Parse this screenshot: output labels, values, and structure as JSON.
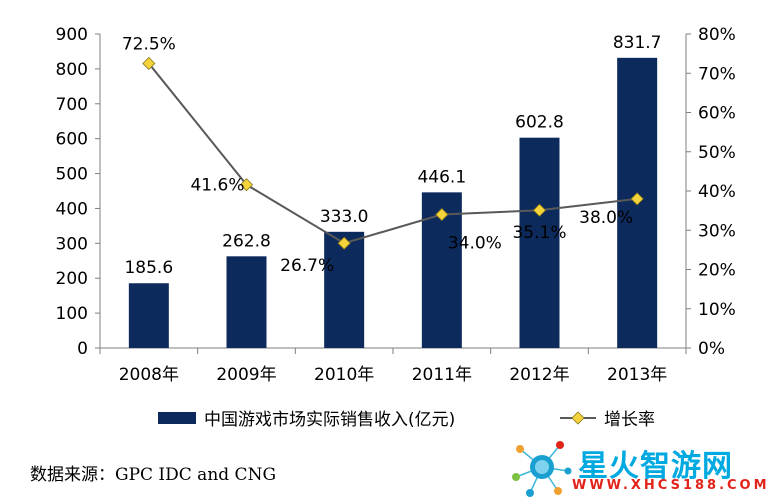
{
  "chart_data": {
    "type": "bar+line",
    "categories": [
      "2008年",
      "2009年",
      "2010年",
      "2011年",
      "2012年",
      "2013年"
    ],
    "series": [
      {
        "name": "中国游戏市场实际销售收入(亿元)",
        "type": "bar",
        "axis": "left",
        "values": [
          185.6,
          262.8,
          333.0,
          446.1,
          602.8,
          831.7
        ],
        "labels": [
          "185.6",
          "262.8",
          "333.0",
          "446.1",
          "602.8",
          "831.7"
        ],
        "color": "#0d2a5c"
      },
      {
        "name": "增长率",
        "type": "line",
        "axis": "right",
        "values": [
          72.5,
          41.6,
          26.7,
          34.0,
          35.1,
          38.0
        ],
        "labels": [
          "72.5%",
          "41.6%",
          "26.7%",
          "34.0%",
          "35.1%",
          "38.0%"
        ],
        "line_color": "#595959",
        "marker_color": "#f5d33a",
        "marker": "diamond"
      }
    ],
    "y_left": {
      "min": 0,
      "max": 900,
      "step": 100,
      "ticks": [
        "0",
        "100",
        "200",
        "300",
        "400",
        "500",
        "600",
        "700",
        "800",
        "900"
      ]
    },
    "y_right": {
      "min": 0,
      "max": 80,
      "step": 10,
      "ticks": [
        "0%",
        "10%",
        "20%",
        "30%",
        "40%",
        "50%",
        "60%",
        "70%",
        "80%"
      ]
    },
    "grid": false,
    "legend": "bottom"
  },
  "legend": {
    "bar_label": "中国游戏市场实际销售收入(亿元)",
    "line_label": "增长率"
  },
  "source": "数据来源：GPC IDC and CNG",
  "watermark": {
    "title": "星火智游网",
    "url": "WWW.XHCS188.COM",
    "icon": "network-logo-icon"
  }
}
